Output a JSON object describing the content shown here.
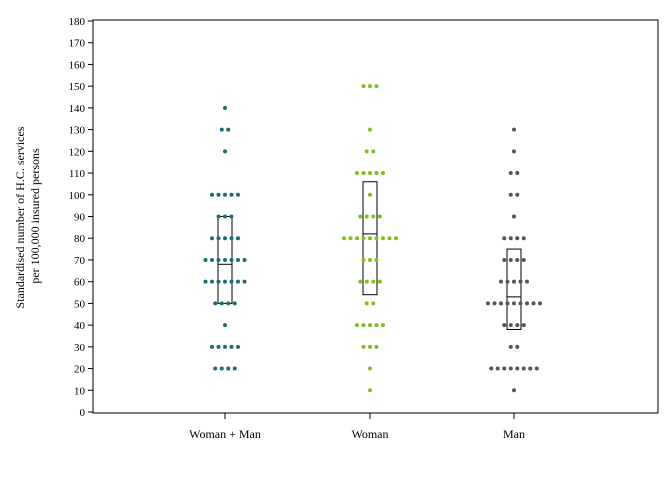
{
  "chart_data": {
    "type": "scatter",
    "title": "",
    "ylabel": [
      "Standardised number of H.C. services",
      "per 100,000 insured persons"
    ],
    "xlabel": "",
    "ylim": [
      0,
      180
    ],
    "yticks": [
      0,
      10,
      20,
      30,
      40,
      50,
      60,
      70,
      80,
      90,
      100,
      110,
      120,
      130,
      140,
      150,
      160,
      170,
      180
    ],
    "grid": false,
    "legend": "none",
    "categories": [
      "Woman + Man",
      "Woman",
      "Man"
    ],
    "series": [
      {
        "color": "#1f6b72",
        "box": {
          "q1": 50,
          "median": 68,
          "q3": 90
        },
        "values": [
          140,
          130,
          130,
          120,
          100,
          100,
          100,
          100,
          100,
          90,
          90,
          90,
          80,
          80,
          80,
          80,
          80,
          70,
          70,
          70,
          70,
          70,
          70,
          70,
          60,
          60,
          60,
          60,
          60,
          60,
          60,
          50,
          50,
          50,
          50,
          40,
          30,
          30,
          30,
          30,
          30,
          20,
          20,
          20,
          20
        ]
      },
      {
        "color": "#7fbf1a",
        "box": {
          "q1": 54,
          "median": 82,
          "q3": 106
        },
        "values": [
          150,
          150,
          150,
          130,
          120,
          120,
          110,
          110,
          110,
          110,
          110,
          100,
          90,
          90,
          90,
          90,
          80,
          80,
          80,
          80,
          80,
          80,
          80,
          80,
          80,
          70,
          70,
          70,
          60,
          60,
          60,
          60,
          50,
          50,
          40,
          40,
          40,
          40,
          40,
          30,
          30,
          30,
          20,
          10
        ]
      },
      {
        "color": "#555555",
        "box": {
          "q1": 38,
          "median": 53,
          "q3": 75
        },
        "values": [
          130,
          120,
          110,
          110,
          100,
          100,
          90,
          80,
          80,
          80,
          80,
          70,
          70,
          70,
          70,
          60,
          60,
          60,
          60,
          60,
          50,
          50,
          50,
          50,
          50,
          50,
          50,
          50,
          50,
          40,
          40,
          40,
          40,
          30,
          30,
          20,
          20,
          20,
          20,
          20,
          20,
          20,
          20,
          10
        ]
      }
    ]
  }
}
